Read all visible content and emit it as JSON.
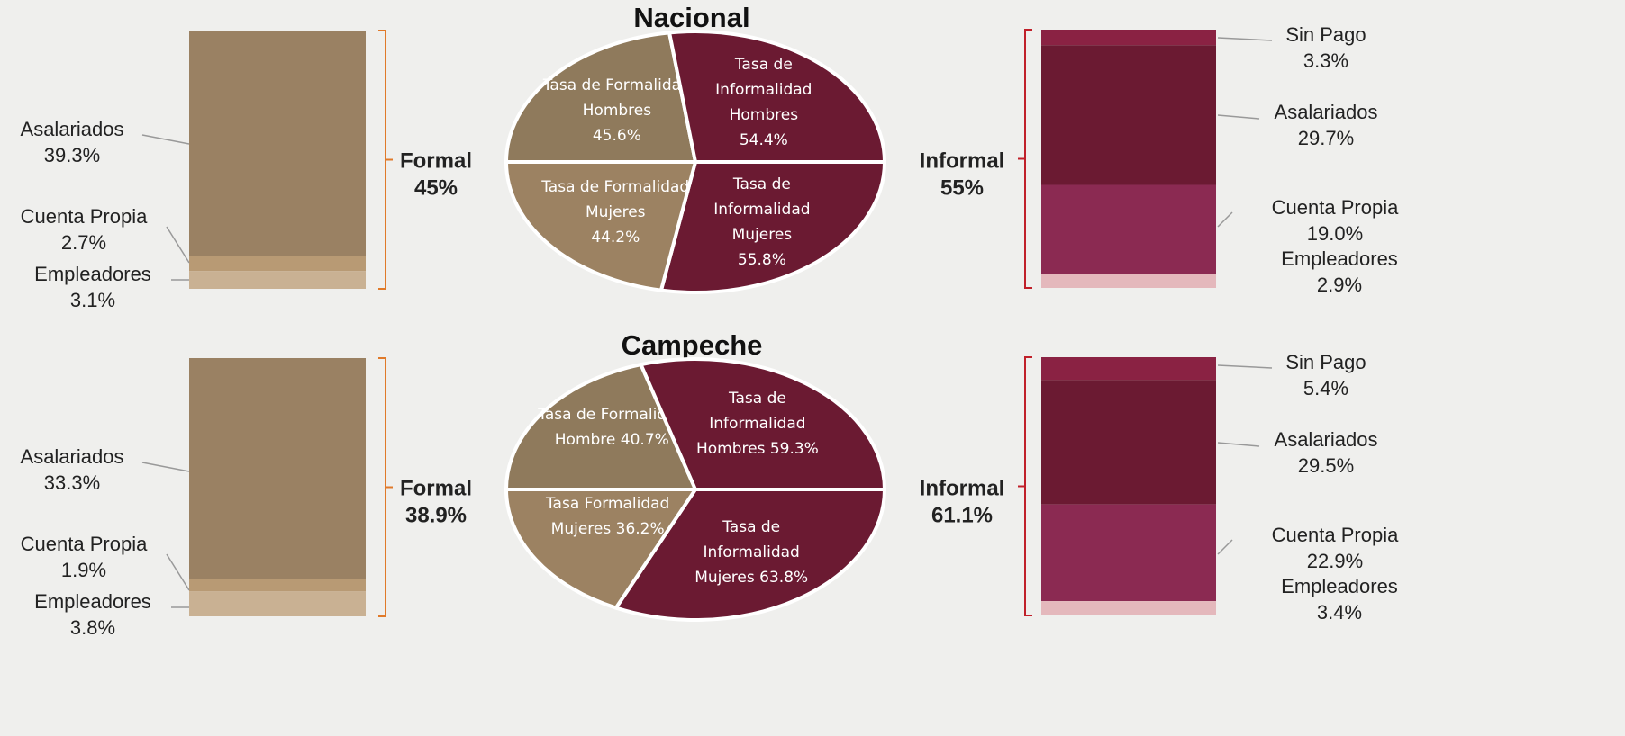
{
  "chart_data": [
    {
      "type": "stacked_bar",
      "group": "Formal",
      "total": 45,
      "total_label": "45%",
      "categories": [
        "Asalariados",
        "Cuenta Propia",
        "Empleadores"
      ],
      "values": [
        39.3,
        2.7,
        3.1
      ],
      "value_labels": [
        "39.3%",
        "2.7%",
        "3.1%"
      ],
      "colors": [
        "#9a8163",
        "#b89a74",
        "#c9b193"
      ],
      "bracket_color": "#e07a2a"
    },
    {
      "type": "pie",
      "title": "Nacional",
      "categories": [
        "Tasa de Formalidad Hombres",
        "Tasa de Informalidad Hombres",
        "Tasa de Informalidad Mujeres",
        "Tasa de Formalidad Mujeres"
      ],
      "values": [
        45.6,
        54.4,
        55.8,
        44.2
      ],
      "value_labels": [
        "45.6%",
        "54.4%",
        "55.8%",
        "44.2%"
      ],
      "colors": [
        "#8f7a5c",
        "#6b1a32",
        "#6b1a32",
        "#9c8262"
      ]
    },
    {
      "type": "stacked_bar",
      "group": "Informal",
      "total": 55,
      "total_label": "55%",
      "categories": [
        "Sin Pago",
        "Asalariados",
        "Cuenta Propia",
        "Empleadores"
      ],
      "values": [
        3.3,
        29.7,
        19.0,
        2.9
      ],
      "value_labels": [
        "3.3%",
        "29.7%",
        "19.0%",
        "2.9%"
      ],
      "colors": [
        "#8a2243",
        "#6b1a32",
        "#8b2a52",
        "#e4b8bc"
      ],
      "bracket_color": "#c0202a"
    },
    {
      "type": "stacked_bar",
      "group": "Formal",
      "total": 38.9,
      "total_label": "38.9%",
      "categories": [
        "Asalariados",
        "Cuenta Propia",
        "Empleadores"
      ],
      "values": [
        33.3,
        1.9,
        3.8
      ],
      "value_labels": [
        "33.3%",
        "1.9%",
        "3.8%"
      ],
      "colors": [
        "#9a8163",
        "#b89a74",
        "#c9b193"
      ],
      "bracket_color": "#e07a2a"
    },
    {
      "type": "pie",
      "title": "Campeche",
      "categories": [
        "Tasa de Formalidad Hombre",
        "Tasa de Informalidad Hombres",
        "Tasa de Informalidad Mujeres",
        "Tasa Formalidad Mujeres"
      ],
      "values": [
        40.7,
        59.3,
        63.8,
        36.2
      ],
      "value_labels": [
        "40.7%",
        "59.3%",
        "63.8%",
        "36.2%"
      ],
      "colors": [
        "#8f7a5c",
        "#6b1a32",
        "#6b1a32",
        "#9c8262"
      ]
    },
    {
      "type": "stacked_bar",
      "group": "Informal",
      "total": 61.1,
      "total_label": "61.1%",
      "categories": [
        "Sin Pago",
        "Asalariados",
        "Cuenta Propia",
        "Empleadores"
      ],
      "values": [
        5.4,
        29.5,
        22.9,
        3.4
      ],
      "value_labels": [
        "5.4%",
        "29.5%",
        "22.9%",
        "3.4%"
      ],
      "colors": [
        "#8a2243",
        "#6b1a32",
        "#8b2a52",
        "#e4b8bc"
      ],
      "bracket_color": "#c0202a"
    }
  ]
}
